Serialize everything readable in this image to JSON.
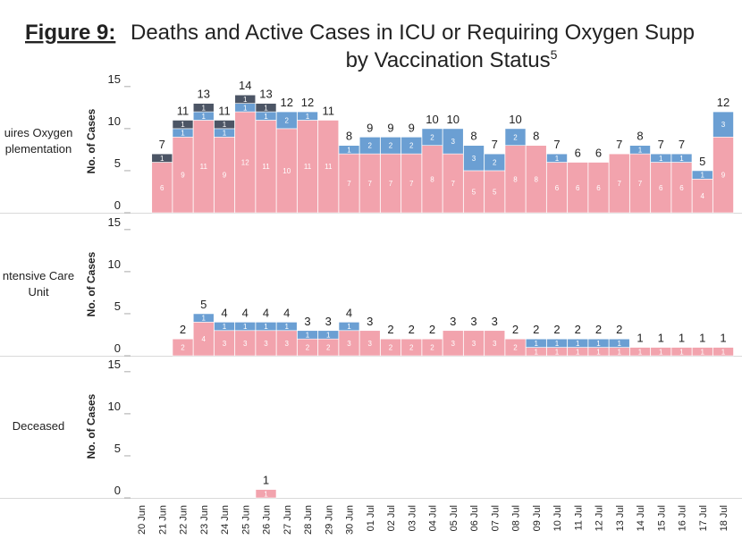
{
  "title": {
    "label": "Figure 9:",
    "text": "Deaths and Active Cases in ICU or Requiring Oxygen Supp",
    "line2": "by Vaccination Status",
    "footnote": "5"
  },
  "chart_data": [
    {
      "type": "bar",
      "stacked": true,
      "row_label": [
        "uires Oxygen",
        "plementation"
      ],
      "ylabel": "No. of Cases",
      "ylim": [
        0,
        17
      ],
      "yticks": [
        0,
        5,
        10,
        15
      ],
      "series": [
        {
          "color": "#f2a3ad",
          "values": [
            null,
            6,
            9,
            11,
            9,
            12,
            11,
            10,
            11,
            11,
            7,
            7,
            7,
            7,
            8,
            7,
            5,
            5,
            8,
            8,
            6,
            6,
            6,
            7,
            7,
            6,
            6,
            4,
            9
          ]
        },
        {
          "color": "#6b9fd3",
          "values": [
            null,
            null,
            1,
            1,
            1,
            1,
            1,
            2,
            1,
            null,
            1,
            2,
            2,
            2,
            2,
            3,
            3,
            2,
            2,
            null,
            1,
            null,
            null,
            null,
            1,
            1,
            1,
            1,
            3
          ]
        },
        {
          "color": "#4c5565",
          "values": [
            null,
            1,
            1,
            1,
            1,
            1,
            1,
            null,
            null,
            null,
            null,
            null,
            null,
            null,
            null,
            null,
            null,
            null,
            null,
            null,
            null,
            null,
            null,
            null,
            null,
            null,
            null,
            null,
            null
          ]
        }
      ],
      "totals": [
        null,
        7,
        11,
        13,
        11,
        14,
        13,
        12,
        12,
        11,
        8,
        9,
        9,
        9,
        10,
        10,
        8,
        7,
        10,
        8,
        7,
        6,
        6,
        7,
        8,
        7,
        7,
        5,
        12
      ]
    },
    {
      "type": "bar",
      "stacked": true,
      "row_label": [
        "ntensive Care",
        "Unit"
      ],
      "ylabel": "No. of Cases",
      "ylim": [
        0,
        17
      ],
      "yticks": [
        0,
        5,
        10,
        15
      ],
      "series": [
        {
          "color": "#f2a3ad",
          "values": [
            null,
            null,
            2,
            4,
            3,
            3,
            3,
            3,
            2,
            2,
            3,
            3,
            2,
            2,
            2,
            3,
            3,
            3,
            2,
            1,
            1,
            1,
            1,
            1,
            1,
            1,
            1,
            1,
            1
          ]
        },
        {
          "color": "#6b9fd3",
          "values": [
            null,
            null,
            null,
            1,
            1,
            1,
            1,
            1,
            1,
            1,
            1,
            null,
            null,
            null,
            null,
            null,
            null,
            null,
            null,
            1,
            1,
            1,
            1,
            1,
            null,
            null,
            null,
            null,
            null
          ]
        }
      ],
      "totals": [
        null,
        null,
        2,
        5,
        4,
        4,
        4,
        4,
        3,
        3,
        4,
        3,
        2,
        2,
        2,
        3,
        3,
        3,
        2,
        2,
        2,
        2,
        2,
        2,
        1,
        1,
        1,
        1,
        1
      ]
    },
    {
      "type": "bar",
      "stacked": true,
      "row_label": [
        "Deceased"
      ],
      "ylabel": "No. of Cases",
      "ylim": [
        0,
        17
      ],
      "yticks": [
        0,
        5,
        10,
        15
      ],
      "categories": [
        "20 Jun",
        "21 Jun",
        "22 Jun",
        "23 Jun",
        "24 Jun",
        "25 Jun",
        "26 Jun",
        "27 Jun",
        "28 Jun",
        "29 Jun",
        "30 Jun",
        "01 Jul",
        "02 Jul",
        "03 Jul",
        "04 Jul",
        "05 Jul",
        "06 Jul",
        "07 Jul",
        "08 Jul",
        "09 Jul",
        "10 Jul",
        "11 Jul",
        "12 Jul",
        "13 Jul",
        "14 Jul",
        "15 Jul",
        "16 Jul",
        "17 Jul",
        "18 Jul"
      ],
      "series": [
        {
          "color": "#f2a3ad",
          "values": [
            null,
            null,
            null,
            null,
            null,
            null,
            1,
            null,
            null,
            null,
            null,
            null,
            null,
            null,
            null,
            null,
            null,
            null,
            null,
            null,
            null,
            null,
            null,
            null,
            null,
            null,
            null,
            null,
            null
          ]
        }
      ],
      "totals": [
        null,
        null,
        null,
        null,
        null,
        null,
        1,
        null,
        null,
        null,
        null,
        null,
        null,
        null,
        null,
        null,
        null,
        null,
        null,
        null,
        null,
        null,
        null,
        null,
        null,
        null,
        null,
        null,
        null
      ]
    }
  ]
}
